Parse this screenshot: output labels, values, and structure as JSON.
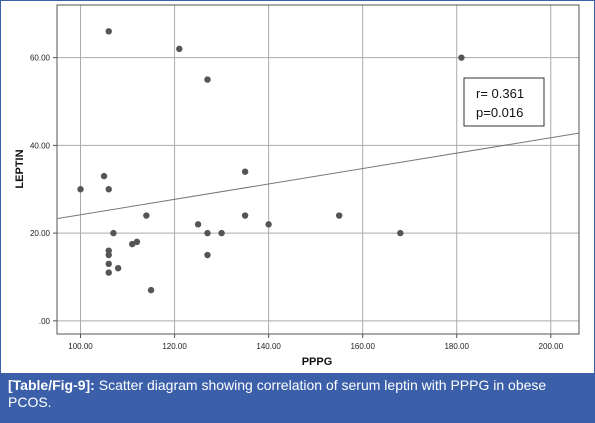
{
  "chart_data": {
    "type": "scatter",
    "xlabel": "PPPG",
    "ylabel": "LEPTIN",
    "xlim": [
      95,
      206
    ],
    "ylim": [
      -3,
      72
    ],
    "xticks": [
      100,
      120,
      140,
      160,
      180,
      200
    ],
    "xtick_labels": [
      "100.00",
      "120.00",
      "140.00",
      "160.00",
      "180.00",
      "200.00"
    ],
    "yticks": [
      0,
      20,
      40,
      60
    ],
    "ytick_labels": [
      ".00",
      "20.00",
      "40.00",
      "60.00"
    ],
    "grid": true,
    "fit_line": {
      "x": [
        95,
        206
      ],
      "y": [
        23.3,
        42.8
      ]
    },
    "points": [
      {
        "x": 106,
        "y": 66
      },
      {
        "x": 121,
        "y": 62
      },
      {
        "x": 127,
        "y": 55
      },
      {
        "x": 181,
        "y": 60
      },
      {
        "x": 100,
        "y": 30
      },
      {
        "x": 105,
        "y": 33
      },
      {
        "x": 106,
        "y": 30
      },
      {
        "x": 107,
        "y": 20
      },
      {
        "x": 106,
        "y": 16
      },
      {
        "x": 106,
        "y": 15
      },
      {
        "x": 106,
        "y": 13
      },
      {
        "x": 106,
        "y": 11
      },
      {
        "x": 108,
        "y": 12
      },
      {
        "x": 111,
        "y": 17.5
      },
      {
        "x": 112,
        "y": 18
      },
      {
        "x": 114,
        "y": 24
      },
      {
        "x": 115,
        "y": 7
      },
      {
        "x": 125,
        "y": 22
      },
      {
        "x": 127,
        "y": 20
      },
      {
        "x": 127,
        "y": 15
      },
      {
        "x": 130,
        "y": 20
      },
      {
        "x": 135,
        "y": 34
      },
      {
        "x": 135,
        "y": 24
      },
      {
        "x": 140,
        "y": 22
      },
      {
        "x": 155,
        "y": 24
      },
      {
        "x": 168,
        "y": 20
      }
    ],
    "annotation": {
      "r": "r= 0.361",
      "p": "p=0.016"
    }
  },
  "caption": {
    "label": "[Table/Fig-9]:",
    "text": " Scatter diagram showing correlation of serum leptin with PPPG in obese PCOS."
  },
  "colors": {
    "accent": "#3b5fa8",
    "points": "#555555"
  }
}
